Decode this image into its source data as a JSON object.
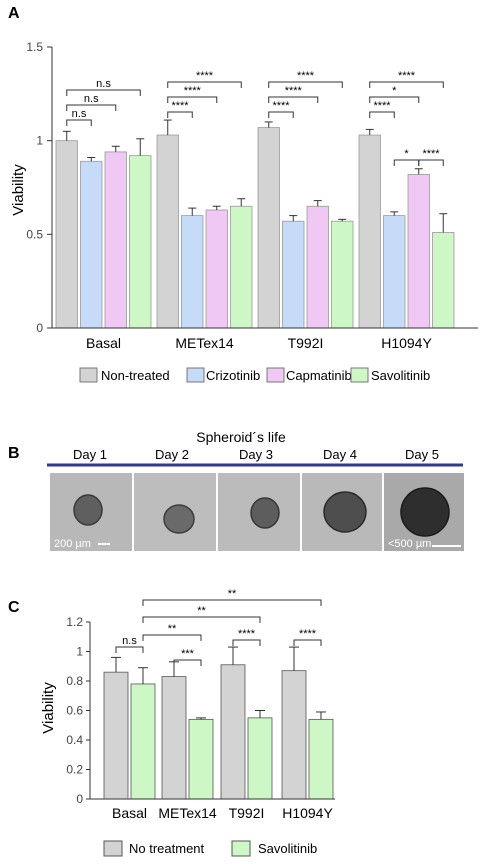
{
  "colors": {
    "non_treated": "#d3d3d3",
    "crizotinib": "#c6dbf7",
    "capmatinib": "#efc8f3",
    "savolitinib": "#cdf8c6",
    "separator": "#2e3a8c"
  },
  "chart_data": [
    {
      "type": "bar",
      "panel": "A",
      "ylabel": "Viability",
      "ylim": [
        0,
        1.5
      ],
      "yticks": [
        "0",
        "0.5",
        "1",
        "1.5"
      ],
      "categories": [
        "Basal",
        "METex14",
        "T992I",
        "H1094Y"
      ],
      "series": [
        {
          "name": "Non-treated",
          "values": [
            1.0,
            1.03,
            1.07,
            1.03
          ],
          "errors": [
            0.05,
            0.08,
            0.03,
            0.03
          ]
        },
        {
          "name": "Crizotinib",
          "values": [
            0.89,
            0.6,
            0.57,
            0.6
          ],
          "errors": [
            0.02,
            0.04,
            0.03,
            0.02
          ]
        },
        {
          "name": "Capmatinib",
          "values": [
            0.94,
            0.63,
            0.65,
            0.82
          ],
          "errors": [
            0.03,
            0.02,
            0.03,
            0.03
          ]
        },
        {
          "name": "Savolitinib",
          "values": [
            0.92,
            0.65,
            0.57,
            0.51
          ],
          "errors": [
            0.09,
            0.04,
            0.01,
            0.1
          ]
        }
      ],
      "significance": [
        {
          "group": 0,
          "from": 0,
          "to": 1,
          "label": "n.s"
        },
        {
          "group": 0,
          "from": 0,
          "to": 2,
          "label": "n.s"
        },
        {
          "group": 0,
          "from": 0,
          "to": 3,
          "label": "n.s"
        },
        {
          "group": 1,
          "from": 0,
          "to": 1,
          "label": "****"
        },
        {
          "group": 1,
          "from": 0,
          "to": 2,
          "label": "****"
        },
        {
          "group": 1,
          "from": 0,
          "to": 3,
          "label": "****"
        },
        {
          "group": 2,
          "from": 0,
          "to": 1,
          "label": "****"
        },
        {
          "group": 2,
          "from": 0,
          "to": 2,
          "label": "****"
        },
        {
          "group": 2,
          "from": 0,
          "to": 3,
          "label": "****"
        },
        {
          "group": 3,
          "from": 0,
          "to": 1,
          "label": "****"
        },
        {
          "group": 3,
          "from": 0,
          "to": 2,
          "label": "*"
        },
        {
          "group": 3,
          "from": 0,
          "to": 3,
          "label": "****"
        },
        {
          "group": 3,
          "from": 1,
          "to": 2,
          "label": "*"
        },
        {
          "group": 3,
          "from": 2,
          "to": 3,
          "label": "****"
        }
      ]
    },
    {
      "type": "bar",
      "panel": "C",
      "ylabel": "Viability",
      "ylim": [
        0,
        1.2
      ],
      "yticks": [
        "0",
        "0.2",
        "0.4",
        "0.6",
        "0.8",
        "1",
        "1.2"
      ],
      "categories": [
        "Basal",
        "METex14",
        "T992I",
        "H1094Y"
      ],
      "series": [
        {
          "name": "No treatment",
          "values": [
            0.86,
            0.83,
            0.91,
            0.87
          ],
          "errors": [
            0.1,
            0.1,
            0.12,
            0.16
          ]
        },
        {
          "name": "Savolitinib",
          "values": [
            0.78,
            0.54,
            0.55,
            0.54
          ],
          "errors": [
            0.11,
            0.01,
            0.05,
            0.05
          ]
        }
      ],
      "significance": [
        {
          "label": "n.s"
        },
        {
          "label": "***"
        },
        {
          "label": "****"
        },
        {
          "label": "****"
        },
        {
          "label": "**"
        },
        {
          "label": "**"
        },
        {
          "label": "**"
        }
      ]
    }
  ],
  "panel_b": {
    "letter": "B",
    "title": "Spheroid´s life",
    "days": [
      "Day 1",
      "Day 2",
      "Day 3",
      "Day 4",
      "Day 5"
    ],
    "scale_left": "200 µm",
    "scale_right": "<500 µm"
  }
}
